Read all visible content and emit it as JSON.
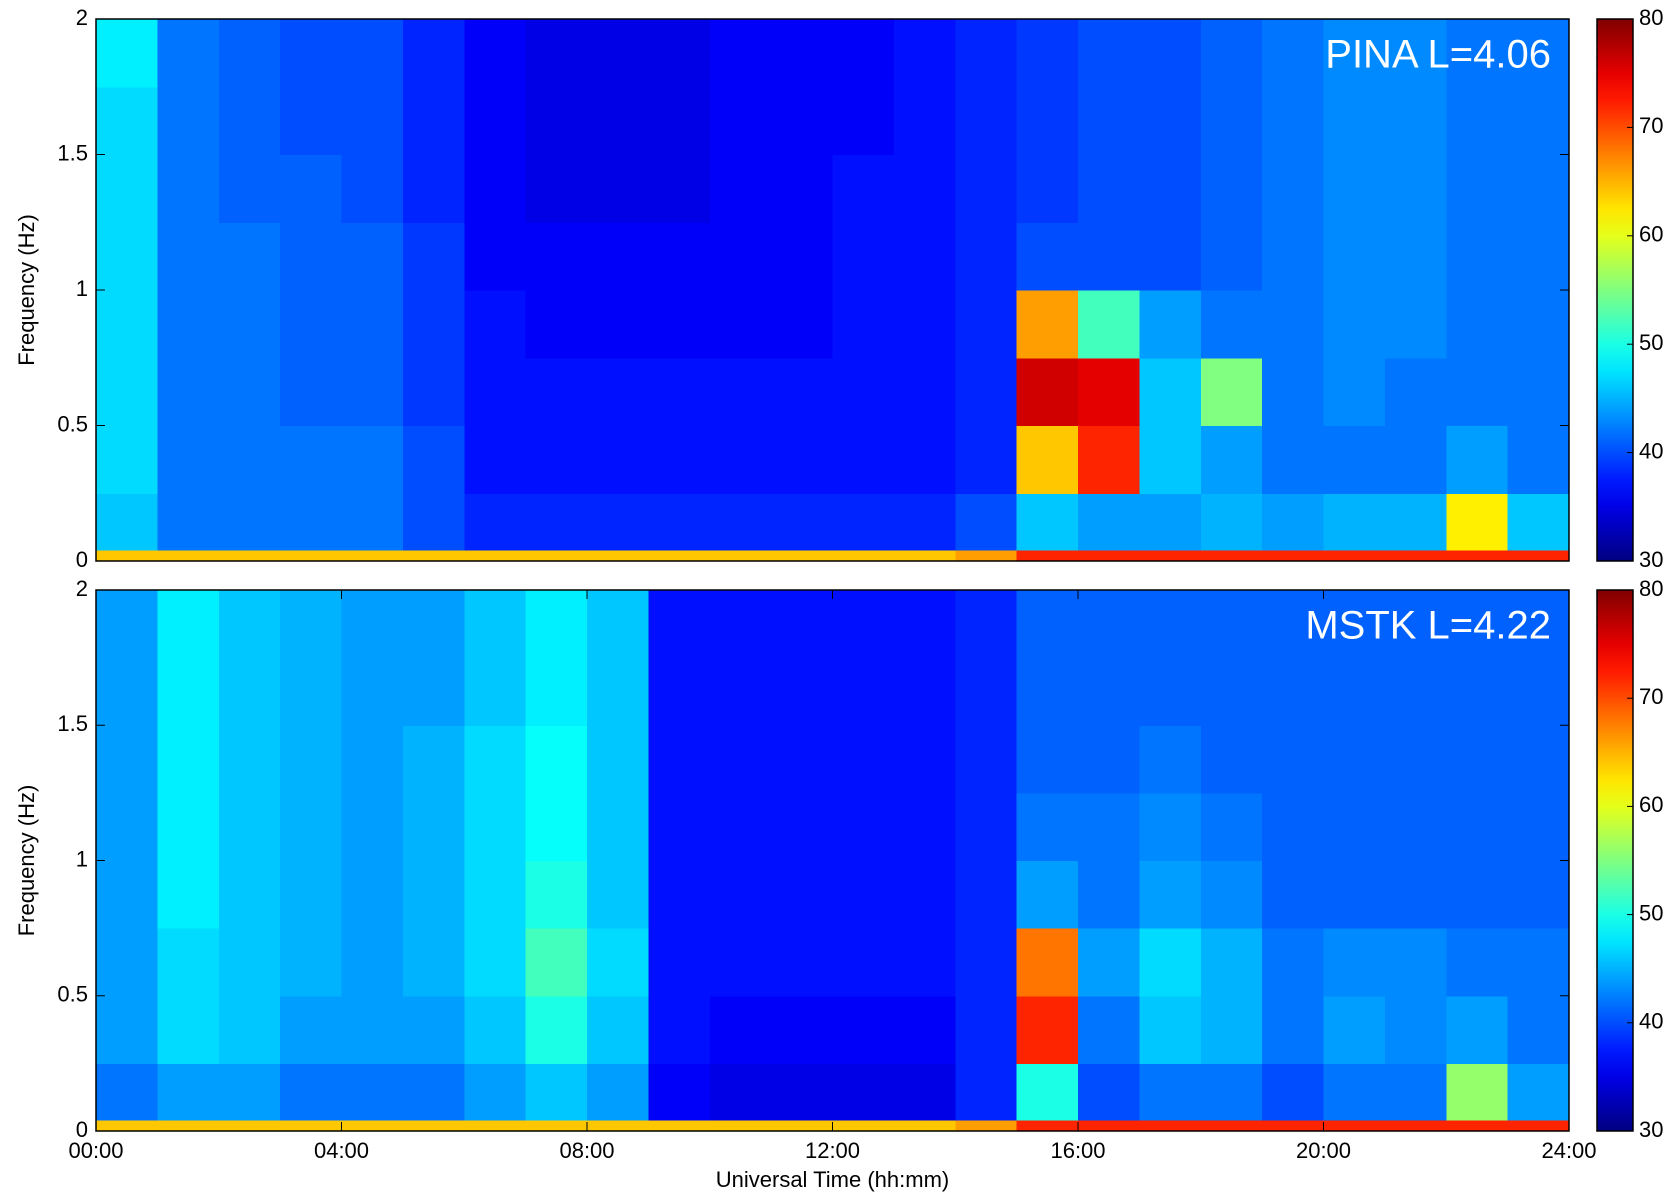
{
  "chart_data": [
    {
      "type": "heatmap",
      "annotation": "PINA L=4.06",
      "ylabel": "Frequency (Hz)",
      "xlim": [
        0,
        24
      ],
      "ylim": [
        0,
        2
      ],
      "yticks": [
        0,
        0.5,
        1,
        1.5,
        2
      ],
      "xbins": [
        0,
        1,
        2,
        3,
        4,
        5,
        6,
        7,
        8,
        9,
        10,
        11,
        12,
        13,
        14,
        15,
        16,
        17,
        18,
        19,
        20,
        21,
        22,
        23,
        24
      ],
      "ybins": [
        0,
        0.04,
        0.25,
        0.5,
        0.75,
        1,
        1.25,
        1.5,
        1.75,
        2
      ],
      "z": [
        [
          64,
          64,
          64,
          64,
          64,
          64,
          64,
          64,
          64,
          64,
          64,
          64,
          64,
          64,
          66,
          72,
          72,
          72,
          72,
          72,
          72,
          72,
          72,
          72
        ],
        [
          46,
          42,
          42,
          42,
          42,
          40,
          38,
          38,
          38,
          38,
          38,
          38,
          38,
          38,
          40,
          46,
          44,
          44,
          45,
          44,
          45,
          45,
          62,
          46
        ],
        [
          47,
          42,
          42,
          42,
          42,
          40,
          37,
          37,
          37,
          37,
          37,
          37,
          37,
          37,
          38,
          64,
          72,
          46,
          44,
          42,
          42,
          42,
          44,
          42
        ],
        [
          47,
          42,
          42,
          41,
          41,
          39,
          37,
          37,
          37,
          37,
          37,
          37,
          37,
          37,
          38,
          76,
          75,
          46,
          55,
          42,
          43,
          42,
          42,
          42
        ],
        [
          47,
          42,
          42,
          41,
          41,
          39,
          37,
          36,
          36,
          36,
          36,
          36,
          37,
          37,
          38,
          66,
          52,
          44,
          42,
          42,
          43,
          43,
          42,
          42
        ],
        [
          47,
          42,
          42,
          41,
          41,
          39,
          36,
          36,
          36,
          36,
          36,
          36,
          37,
          37,
          38,
          40,
          40,
          40,
          41,
          42,
          43,
          43,
          42,
          42
        ],
        [
          47,
          42,
          41,
          41,
          40,
          38,
          36,
          35,
          35,
          35,
          36,
          36,
          37,
          37,
          38,
          39,
          40,
          40,
          41,
          42,
          43,
          43,
          42,
          42
        ],
        [
          47,
          42,
          41,
          40,
          40,
          38,
          36,
          35,
          35,
          35,
          36,
          36,
          36,
          37,
          38,
          39,
          40,
          40,
          41,
          42,
          43,
          43,
          42,
          42
        ],
        [
          48,
          42,
          41,
          40,
          40,
          38,
          36,
          35,
          35,
          35,
          36,
          36,
          36,
          37,
          38,
          39,
          40,
          40,
          41,
          42,
          43,
          43,
          42,
          42
        ]
      ],
      "colormap": "jet",
      "clim": [
        30,
        80
      ],
      "cticks": [
        30,
        40,
        50,
        60,
        70,
        80
      ]
    },
    {
      "type": "heatmap",
      "annotation": "MSTK L=4.22",
      "ylabel": "Frequency (Hz)",
      "xlabel": "Universal Time (hh:mm)",
      "xlim": [
        0,
        24
      ],
      "ylim": [
        0,
        2
      ],
      "yticks": [
        0,
        0.5,
        1,
        1.5,
        2
      ],
      "xticks": [
        {
          "value": 0,
          "label": "00:00"
        },
        {
          "value": 4,
          "label": "04:00"
        },
        {
          "value": 8,
          "label": "08:00"
        },
        {
          "value": 12,
          "label": "12:00"
        },
        {
          "value": 16,
          "label": "16:00"
        },
        {
          "value": 20,
          "label": "20:00"
        },
        {
          "value": 24,
          "label": "24:00"
        }
      ],
      "xbins": [
        0,
        1,
        2,
        3,
        4,
        5,
        6,
        7,
        8,
        9,
        10,
        11,
        12,
        13,
        14,
        15,
        16,
        17,
        18,
        19,
        20,
        21,
        22,
        23,
        24
      ],
      "ybins": [
        0,
        0.04,
        0.25,
        0.5,
        0.75,
        1,
        1.25,
        1.5,
        1.75,
        2
      ],
      "z": [
        [
          64,
          64,
          64,
          64,
          64,
          64,
          64,
          64,
          64,
          64,
          64,
          64,
          64,
          64,
          66,
          72,
          72,
          72,
          72,
          72,
          72,
          72,
          72,
          72
        ],
        [
          42,
          44,
          44,
          42,
          42,
          42,
          44,
          46,
          44,
          36,
          35,
          35,
          35,
          35,
          38,
          50,
          40,
          42,
          42,
          40,
          42,
          42,
          56,
          44
        ],
        [
          44,
          47,
          46,
          44,
          44,
          44,
          46,
          50,
          46,
          37,
          36,
          36,
          36,
          36,
          38,
          72,
          42,
          46,
          45,
          42,
          44,
          43,
          44,
          42
        ],
        [
          44,
          47,
          46,
          45,
          44,
          45,
          47,
          52,
          47,
          37,
          37,
          37,
          37,
          37,
          38,
          68,
          44,
          47,
          45,
          42,
          43,
          43,
          42,
          42
        ],
        [
          44,
          48,
          46,
          45,
          44,
          45,
          47,
          50,
          46,
          37,
          37,
          37,
          37,
          37,
          38,
          44,
          42,
          44,
          43,
          41,
          41,
          41,
          41,
          41
        ],
        [
          44,
          48,
          46,
          45,
          44,
          45,
          47,
          49,
          46,
          37,
          37,
          37,
          37,
          37,
          38,
          42,
          42,
          43,
          42,
          41,
          41,
          41,
          41,
          41
        ],
        [
          44,
          48,
          46,
          45,
          44,
          45,
          47,
          49,
          46,
          37,
          37,
          37,
          37,
          37,
          38,
          41,
          41,
          42,
          41,
          41,
          41,
          41,
          41,
          41
        ],
        [
          44,
          48,
          46,
          45,
          44,
          44,
          46,
          48,
          46,
          37,
          37,
          37,
          37,
          37,
          38,
          41,
          41,
          41,
          41,
          41,
          41,
          41,
          41,
          41
        ],
        [
          44,
          48,
          46,
          45,
          44,
          44,
          46,
          48,
          46,
          37,
          37,
          37,
          37,
          37,
          38,
          41,
          41,
          41,
          41,
          41,
          41,
          41,
          41,
          41
        ]
      ],
      "colormap": "jet",
      "clim": [
        30,
        80
      ],
      "cticks": [
        30,
        40,
        50,
        60,
        70,
        80
      ]
    }
  ]
}
